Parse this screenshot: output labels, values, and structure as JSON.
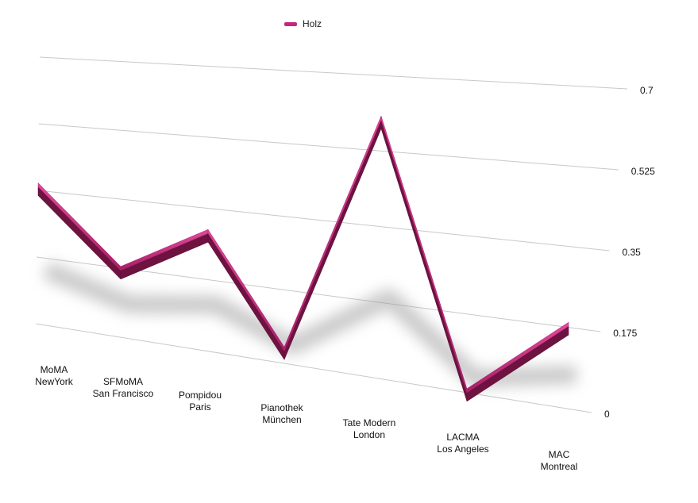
{
  "chart_data": {
    "type": "line",
    "categories": [
      [
        "MoMA",
        "NewYork"
      ],
      [
        "SFMoMA",
        "San Francisco"
      ],
      [
        "Pompidou",
        "Paris"
      ],
      [
        "Pianothek",
        "München"
      ],
      [
        "Tate Modern",
        "London"
      ],
      [
        "LACMA",
        "Los Angeles"
      ],
      [
        "MAC",
        "Montreal"
      ]
    ],
    "series": [
      {
        "name": "Holz",
        "values": [
          0.36,
          0.17,
          0.29,
          0.03,
          0.6,
          0.0,
          0.18
        ],
        "color": "#c2277d"
      }
    ],
    "yticks": [
      "0",
      "0.175",
      "0.35",
      "0.525",
      "0.7"
    ],
    "ylim": [
      0,
      0.7
    ],
    "grid": true,
    "legend_position": "top-left",
    "style": "3d-ribbon"
  }
}
